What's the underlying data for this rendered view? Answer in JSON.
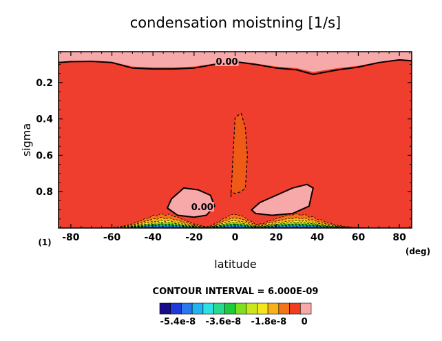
{
  "chart_data": {
    "type": "heatmap",
    "title": "condensation moistning [1/s]",
    "xlabel": "latitude",
    "ylabel": "sigma",
    "x_unit": "(deg)",
    "corner_label": "(1)",
    "xlim": [
      -86,
      86
    ],
    "ylim": [
      1.0,
      0.03
    ],
    "x_ticks": [
      "-80",
      "-60",
      "-40",
      "-20",
      "0",
      "20",
      "40",
      "60",
      "80"
    ],
    "x_tick_values": [
      -80,
      -60,
      -40,
      -20,
      0,
      20,
      40,
      60,
      80
    ],
    "y_ticks": [
      "0.2",
      "0.4",
      "0.6",
      "0.8"
    ],
    "y_tick_values": [
      0.2,
      0.4,
      0.6,
      0.8
    ],
    "contour_interval_text": "CONTOUR INTERVAL = 6.000E-09",
    "contour_labels": [
      "0.00",
      "0.00"
    ],
    "colorbar": {
      "tick_labels": [
        "-5.4e-8",
        "-3.6e-8",
        "-1.8e-8",
        "0"
      ],
      "colors": [
        "#1a0a8c",
        "#1f3ad9",
        "#2a77f0",
        "#22b3f2",
        "#2de0e6",
        "#28d98f",
        "#1ecb3b",
        "#7ee01e",
        "#c9e81a",
        "#f4e61e",
        "#f7b21a",
        "#f4741a",
        "#ef3e1e",
        "#f7a8a8"
      ]
    },
    "background_value_color": "#ef3e2e",
    "upper_band_color": "#f7a8a8",
    "zero_contour_top": {
      "x": [
        -86,
        -80,
        -70,
        -60,
        -50,
        -40,
        -30,
        -20,
        -10,
        0,
        10,
        20,
        30,
        38,
        50,
        60,
        70,
        80,
        86
      ],
      "y": [
        0.09,
        0.085,
        0.083,
        0.09,
        0.12,
        0.125,
        0.125,
        0.12,
        0.1,
        0.085,
        0.1,
        0.12,
        0.13,
        0.155,
        0.13,
        0.115,
        0.09,
        0.075,
        0.08
      ]
    },
    "positive_lobes": [
      {
        "x": [
          -31,
          -25,
          -18,
          -12,
          -10,
          -14,
          -20,
          -28,
          -33,
          -31
        ],
        "y": [
          0.84,
          0.78,
          0.79,
          0.82,
          0.88,
          0.93,
          0.94,
          0.93,
          0.89,
          0.84
        ]
      },
      {
        "x": [
          8,
          12,
          20,
          28,
          35,
          38,
          36,
          28,
          18,
          10,
          8
        ],
        "y": [
          0.9,
          0.86,
          0.82,
          0.78,
          0.76,
          0.78,
          0.88,
          0.92,
          0.93,
          0.92,
          0.9
        ]
      }
    ],
    "central_minimum": {
      "x": [
        -2,
        -1,
        0,
        3,
        5,
        6,
        5,
        3,
        0,
        -2,
        -2
      ],
      "y": [
        0.83,
        0.6,
        0.39,
        0.37,
        0.45,
        0.6,
        0.78,
        0.8,
        0.81,
        0.8,
        0.83
      ]
    }
  }
}
